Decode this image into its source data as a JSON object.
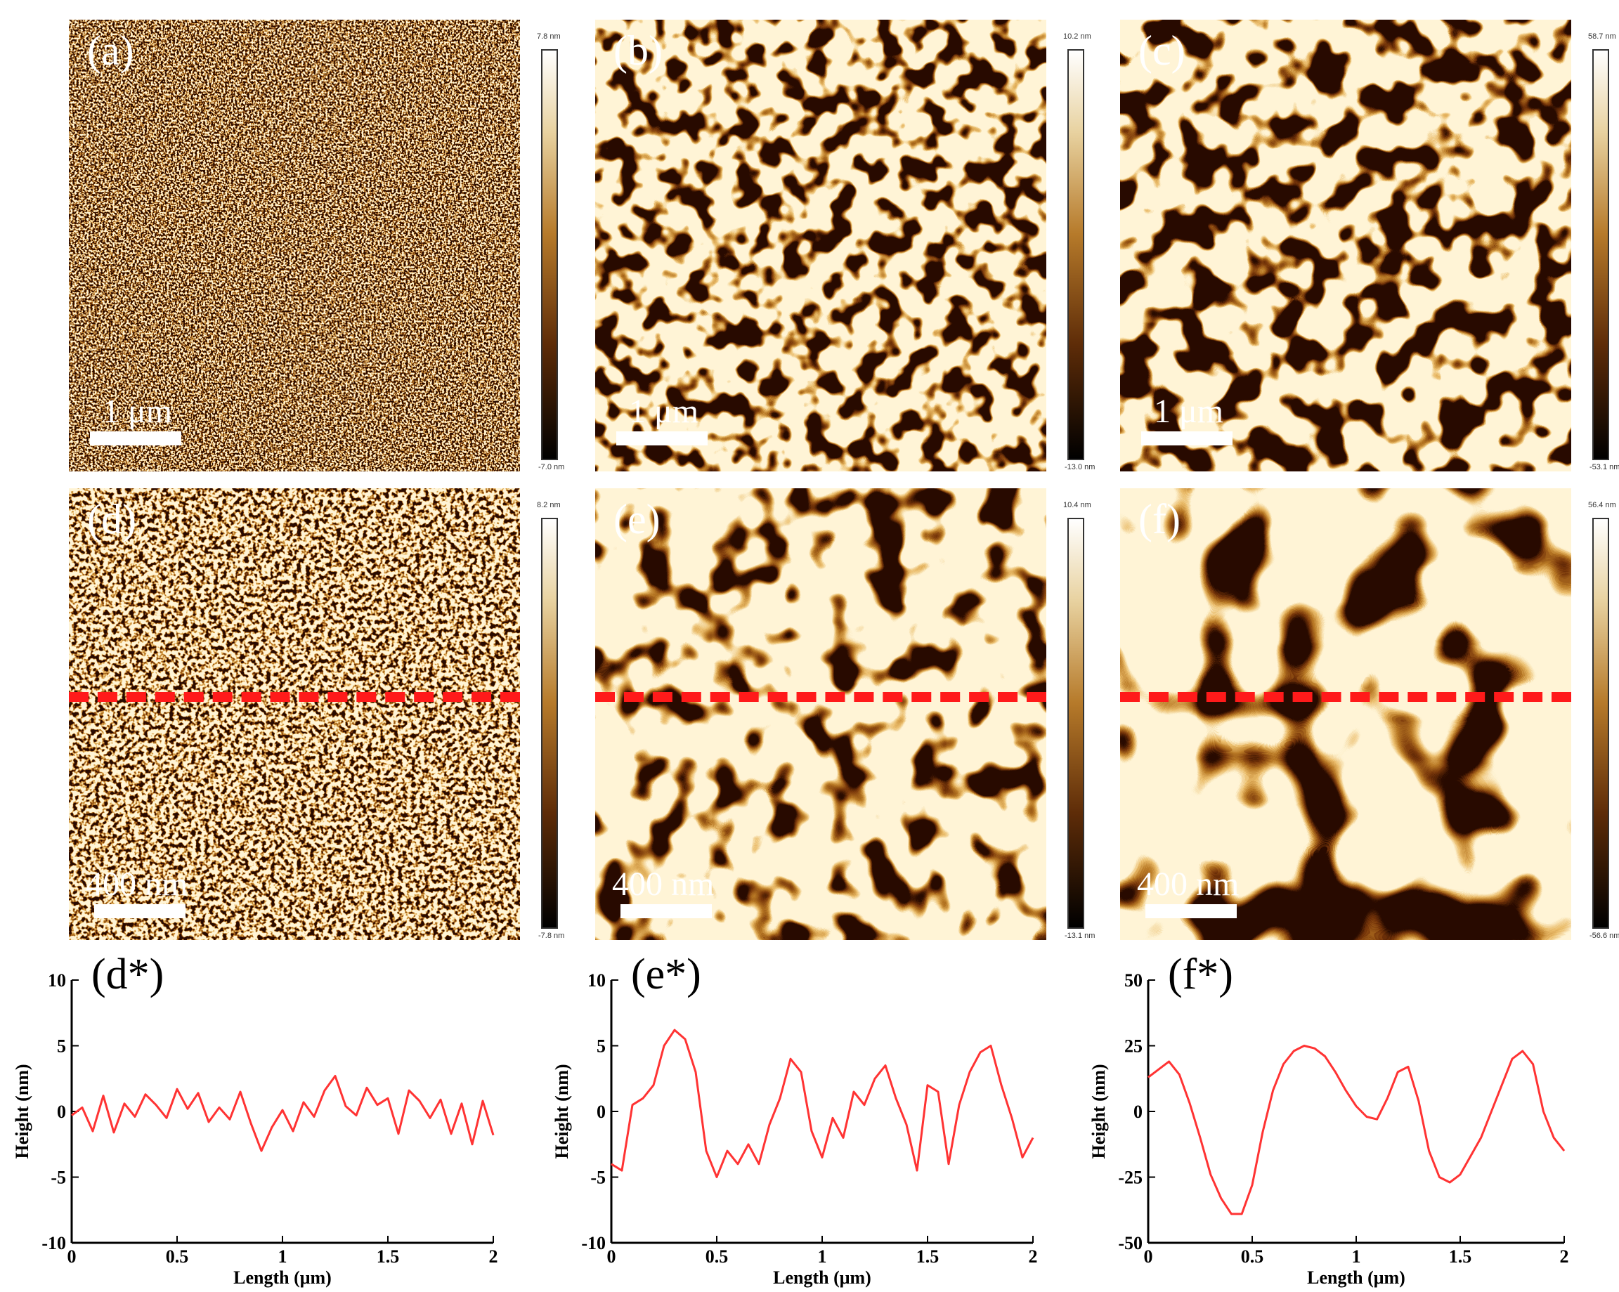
{
  "figure": {
    "afm_panels": [
      {
        "id": "a",
        "label": "(a)",
        "scale_bar": "1 μm",
        "color_max": "7.8 nm",
        "color_min": "-7.0 nm",
        "profile_line": false
      },
      {
        "id": "b",
        "label": "(b)",
        "scale_bar": "1 μm",
        "color_max": "10.2 nm",
        "color_min": "-13.0 nm",
        "profile_line": false
      },
      {
        "id": "c",
        "label": "(c)",
        "scale_bar": "1 μm",
        "color_max": "58.7 nm",
        "color_min": "-53.1 nm",
        "profile_line": false
      },
      {
        "id": "d",
        "label": "(d)",
        "scale_bar": "400 nm",
        "color_max": "8.2 nm",
        "color_min": "-7.8 nm",
        "profile_line": true
      },
      {
        "id": "e",
        "label": "(e)",
        "scale_bar": "400 nm",
        "color_max": "10.4 nm",
        "color_min": "-13.1 nm",
        "profile_line": true
      },
      {
        "id": "f",
        "label": "(f)",
        "scale_bar": "400 nm",
        "color_max": "56.4 nm",
        "color_min": "-56.6 nm",
        "profile_line": true
      }
    ],
    "colors": {
      "profile_line": "#ff1a1a",
      "plot_line": "#ff3333",
      "afm_dark": "#2a0a00",
      "afm_mid": "#a86a24",
      "afm_light": "#fff4d6"
    }
  },
  "chart_data": [
    {
      "type": "line",
      "label": "(d*)",
      "xlabel": "Length (μm)",
      "ylabel": "Height (nm)",
      "xlim": [
        0,
        2
      ],
      "ylim": [
        -10,
        10
      ],
      "xticks": [
        "0",
        "0.5",
        "1",
        "1.5",
        "2"
      ],
      "yticks": [
        "10",
        "5",
        "0",
        "-5",
        "-10"
      ],
      "xtick_values": [
        0,
        0.5,
        1,
        1.5,
        2
      ],
      "ytick_values": [
        10,
        5,
        0,
        -5,
        -10
      ],
      "x": [
        0,
        0.05,
        0.1,
        0.15,
        0.2,
        0.25,
        0.3,
        0.35,
        0.4,
        0.45,
        0.5,
        0.55,
        0.6,
        0.65,
        0.7,
        0.75,
        0.8,
        0.85,
        0.9,
        0.95,
        1,
        1.05,
        1.1,
        1.15,
        1.2,
        1.25,
        1.3,
        1.35,
        1.4,
        1.45,
        1.5,
        1.55,
        1.6,
        1.65,
        1.7,
        1.75,
        1.8,
        1.85,
        1.9,
        1.95,
        2
      ],
      "series": [
        {
          "values": [
            -0.3,
            0.3,
            -1.5,
            1.2,
            -1.6,
            0.6,
            -0.4,
            1.3,
            0.5,
            -0.5,
            1.7,
            0.2,
            1.4,
            -0.8,
            0.3,
            -0.6,
            1.5,
            -0.9,
            -3.0,
            -1.2,
            0.1,
            -1.5,
            0.7,
            -0.4,
            1.6,
            2.7,
            0.4,
            -0.3,
            1.8,
            0.5,
            1.0,
            -1.7,
            1.6,
            0.8,
            -0.5,
            0.9,
            -1.7,
            0.6,
            -2.5,
            0.8,
            -1.8
          ]
        }
      ]
    },
    {
      "type": "line",
      "label": "(e*)",
      "xlabel": "Length (μm)",
      "ylabel": "Height (nm)",
      "xlim": [
        0,
        2
      ],
      "ylim": [
        -10,
        10
      ],
      "xticks": [
        "0",
        "0.5",
        "1",
        "1.5",
        "2"
      ],
      "yticks": [
        "10",
        "5",
        "0",
        "-5",
        "-10"
      ],
      "xtick_values": [
        0,
        0.5,
        1,
        1.5,
        2
      ],
      "ytick_values": [
        10,
        5,
        0,
        -5,
        -10
      ],
      "x": [
        0,
        0.05,
        0.1,
        0.15,
        0.2,
        0.25,
        0.3,
        0.35,
        0.4,
        0.45,
        0.5,
        0.55,
        0.6,
        0.65,
        0.7,
        0.75,
        0.8,
        0.85,
        0.9,
        0.95,
        1,
        1.05,
        1.1,
        1.15,
        1.2,
        1.25,
        1.3,
        1.35,
        1.4,
        1.45,
        1.5,
        1.55,
        1.6,
        1.65,
        1.7,
        1.75,
        1.8,
        1.85,
        1.9,
        1.95,
        2
      ],
      "series": [
        {
          "values": [
            -4.0,
            -4.5,
            0.5,
            1.0,
            2.0,
            5.0,
            6.2,
            5.5,
            3.0,
            -3.0,
            -5.0,
            -3.0,
            -4.0,
            -2.5,
            -4.0,
            -1.0,
            1.0,
            4.0,
            3.0,
            -1.5,
            -3.5,
            -0.5,
            -2.0,
            1.5,
            0.5,
            2.5,
            3.5,
            1.0,
            -1.0,
            -4.5,
            2.0,
            1.5,
            -4.0,
            0.5,
            3.0,
            4.5,
            5.0,
            2.0,
            -0.5,
            -3.5,
            -2.0
          ]
        }
      ]
    },
    {
      "type": "line",
      "label": "(f*)",
      "xlabel": "Length (μm)",
      "ylabel": "Height (nm)",
      "xlim": [
        0,
        2
      ],
      "ylim": [
        -50,
        50
      ],
      "xticks": [
        "0",
        "0.5",
        "1",
        "1.5",
        "2"
      ],
      "yticks": [
        "50",
        "25",
        "0",
        "-25",
        "-50"
      ],
      "xtick_values": [
        0,
        0.5,
        1,
        1.5,
        2
      ],
      "ytick_values": [
        50,
        25,
        0,
        -25,
        -50
      ],
      "x": [
        0,
        0.05,
        0.1,
        0.15,
        0.2,
        0.25,
        0.3,
        0.35,
        0.4,
        0.45,
        0.5,
        0.55,
        0.6,
        0.65,
        0.7,
        0.75,
        0.8,
        0.85,
        0.9,
        0.95,
        1,
        1.05,
        1.1,
        1.15,
        1.2,
        1.25,
        1.3,
        1.35,
        1.4,
        1.45,
        1.5,
        1.55,
        1.6,
        1.65,
        1.7,
        1.75,
        1.8,
        1.85,
        1.9,
        1.95,
        2
      ],
      "series": [
        {
          "values": [
            13,
            16,
            19,
            14,
            3,
            -10,
            -24,
            -33,
            -39,
            -39,
            -28,
            -8,
            8,
            18,
            23,
            25,
            24,
            21,
            15,
            8,
            2,
            -2,
            -3,
            5,
            15,
            17,
            4,
            -15,
            -25,
            -27,
            -24,
            -17,
            -10,
            0,
            10,
            20,
            23,
            18,
            0,
            -10,
            -15
          ]
        }
      ]
    }
  ]
}
